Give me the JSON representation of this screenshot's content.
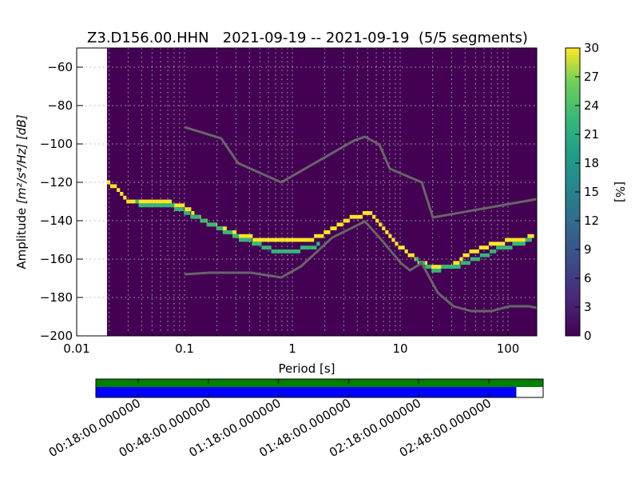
{
  "chart_data": {
    "type": "heatmap",
    "title": "Z3.D156.00.HHN   2021-09-19 -- 2021-09-19  (5/5 segments)",
    "xlabel": "Period [s]",
    "ylabel_prefix": "Amplitude ",
    "ylabel_units": "[m²/s⁴/Hz] [dB]",
    "xscale": "log",
    "xlim": [
      0.01,
      185
    ],
    "ylim": [
      -200,
      -50
    ],
    "data_start_period": 0.0191,
    "xticks": [
      {
        "v": 0.01,
        "label": "0.01"
      },
      {
        "v": 0.1,
        "label": "0.1"
      },
      {
        "v": 1,
        "label": "1"
      },
      {
        "v": 10,
        "label": "10"
      },
      {
        "v": 100,
        "label": "100"
      }
    ],
    "yticks": [
      {
        "v": -60,
        "label": "−60"
      },
      {
        "v": -80,
        "label": "−80"
      },
      {
        "v": -100,
        "label": "−100"
      },
      {
        "v": -120,
        "label": "−120"
      },
      {
        "v": -140,
        "label": "−140"
      },
      {
        "v": -160,
        "label": "−160"
      },
      {
        "v": -180,
        "label": "−180"
      },
      {
        "v": -200,
        "label": "−200"
      }
    ],
    "background_color": "#440154",
    "density_branches": [
      {
        "percent": 30,
        "color": "#fde725",
        "points": [
          [
            0.0191,
            -120
          ],
          [
            0.0223,
            -123.3
          ],
          [
            0.0298,
            -130.8
          ],
          [
            0.0589,
            -129.2
          ],
          [
            0.098,
            -133.3
          ],
          [
            0.164,
            -141.7
          ],
          [
            0.324,
            -147.9
          ],
          [
            0.541,
            -150
          ],
          [
            1.27,
            -150
          ],
          [
            1.79,
            -147.9
          ],
          [
            2.51,
            -142.5
          ],
          [
            3.53,
            -138.3
          ],
          [
            4.56,
            -136.7
          ],
          [
            5.41,
            -136.7
          ],
          [
            6.99,
            -145.8
          ],
          [
            9.84,
            -154.2
          ],
          [
            13.8,
            -160.4
          ],
          [
            19.4,
            -164.6
          ],
          [
            27.4,
            -164.6
          ],
          [
            38.5,
            -158.3
          ],
          [
            54.1,
            -154.2
          ],
          [
            76.1,
            -152.1
          ],
          [
            107,
            -150
          ],
          [
            164,
            -148.75
          ]
        ]
      },
      {
        "percent": 18,
        "color": "#35b779",
        "points": [
          [
            0.035,
            -131
          ],
          [
            0.07,
            -131.5
          ],
          [
            0.138,
            -139.6
          ],
          [
            0.324,
            -149.2
          ],
          [
            0.641,
            -155.4
          ],
          [
            0.903,
            -156.25
          ],
          [
            1.79,
            -152.5
          ]
        ]
      },
      {
        "percent": 18,
        "color": "#35b779",
        "points": [
          [
            13.8,
            -161
          ],
          [
            19.4,
            -165.8
          ],
          [
            38.5,
            -162.5
          ],
          [
            76.1,
            -155
          ],
          [
            164,
            -150
          ]
        ]
      }
    ],
    "nhnm": [
      [
        0.1,
        -91.25
      ],
      [
        0.219,
        -97.1
      ],
      [
        0.314,
        -110
      ],
      [
        0.788,
        -120
      ],
      [
        3.72,
        -98.3
      ],
      [
        4.72,
        -96.25
      ],
      [
        6.42,
        -100.4
      ],
      [
        8.01,
        -112.9
      ],
      [
        15.85,
        -120
      ],
      [
        20.1,
        -138.3
      ],
      [
        185,
        -128.75
      ]
    ],
    "nlnm": [
      [
        0.1,
        -167.9
      ],
      [
        0.17,
        -167.1
      ],
      [
        0.412,
        -167.1
      ],
      [
        0.788,
        -169.6
      ],
      [
        1.205,
        -163.75
      ],
      [
        2.35,
        -148.75
      ],
      [
        4.72,
        -140.4
      ],
      [
        6.42,
        -148.75
      ],
      [
        10.17,
        -162.1
      ],
      [
        12.3,
        -165.8
      ],
      [
        15.85,
        -162.1
      ],
      [
        22.3,
        -177.5
      ],
      [
        31.3,
        -184.6
      ],
      [
        45.6,
        -187.1
      ],
      [
        69.8,
        -187.1
      ],
      [
        103.5,
        -184.6
      ],
      [
        156,
        -184.6
      ],
      [
        185,
        -185.4
      ]
    ],
    "colorbar": {
      "label": "[%]",
      "range": [
        0,
        30
      ],
      "ticks": [
        "0",
        "3",
        "6",
        "9",
        "12",
        "15",
        "18",
        "21",
        "24",
        "27",
        "30"
      ]
    },
    "coverage": {
      "green_fraction": 1.0,
      "blue_fraction": 0.94,
      "time_labels": [
        "00:18:00.000000",
        "00:48:00.000000",
        "01:18:00.000000",
        "01:48:00.000000",
        "02:18:00.000000",
        "02:48:00.000000"
      ]
    }
  }
}
